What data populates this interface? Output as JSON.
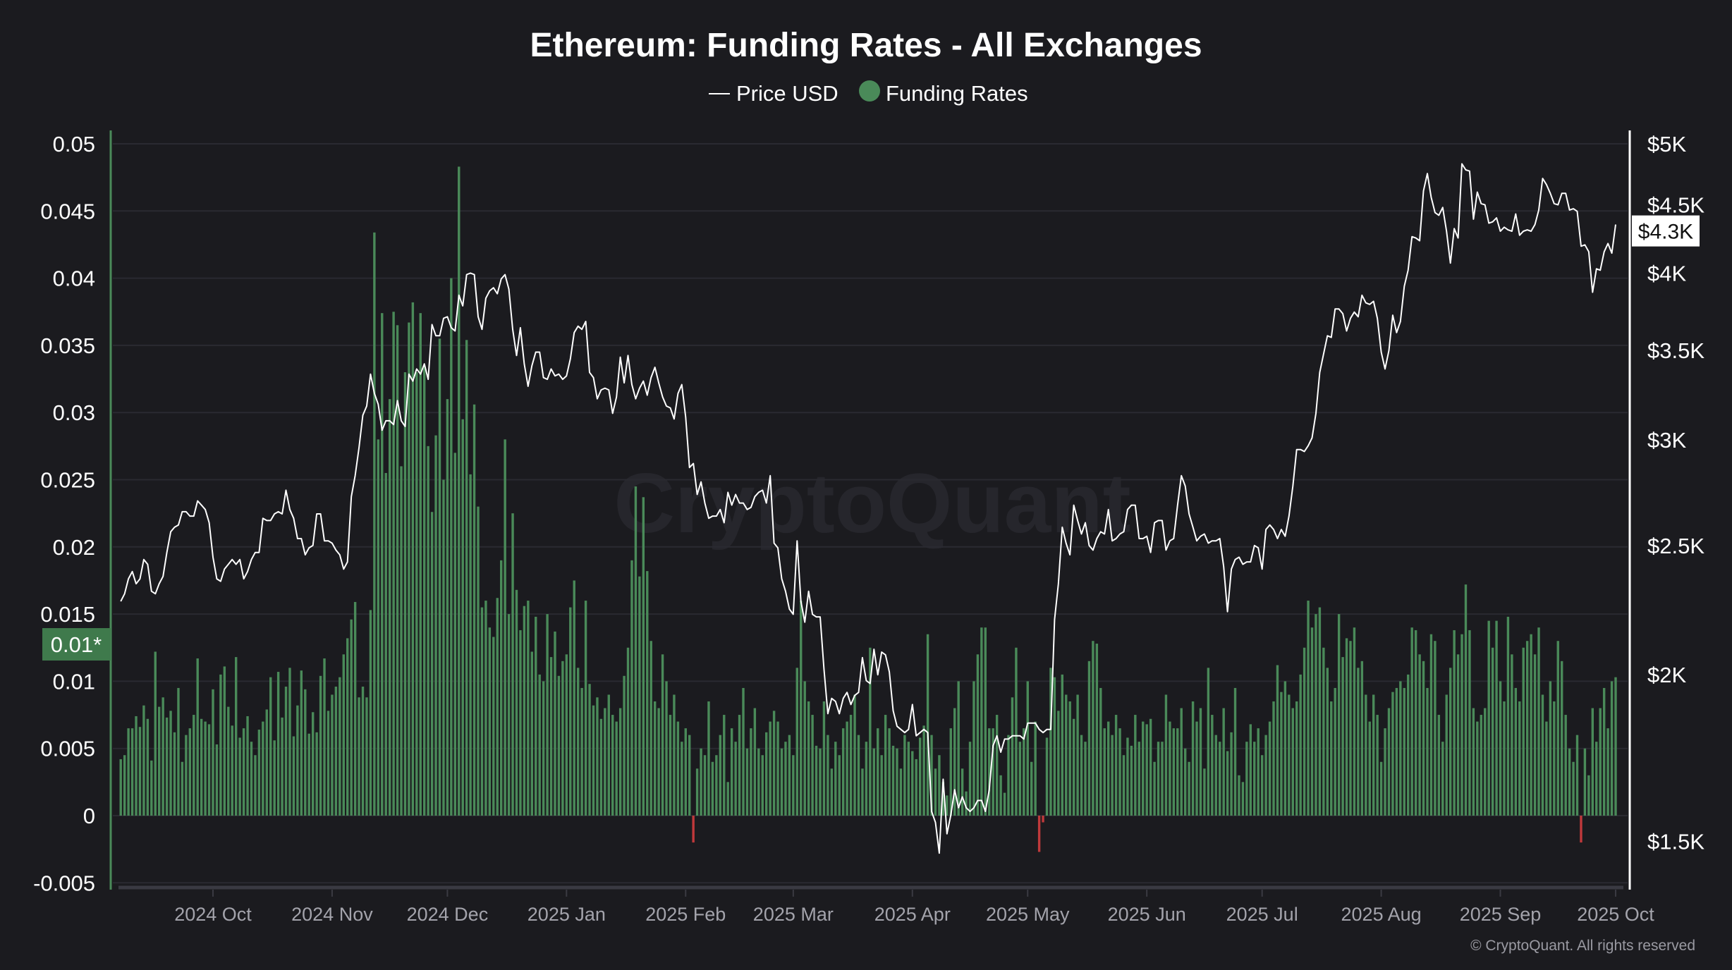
{
  "title": "Ethereum: Funding Rates - All Exchanges",
  "legend": [
    {
      "label": "Price USD",
      "marker": "line",
      "color": "#ffffff"
    },
    {
      "label": "Funding Rates",
      "marker": "circle",
      "color": "#4a8a59"
    }
  ],
  "watermark": "CryptoQuant",
  "footer": "© CryptoQuant. All rights reserved",
  "colors": {
    "background": "#1b1b1f",
    "positive_bar": "#4a8a59",
    "negative_bar": "#c0393b",
    "price_line": "#ffffff",
    "grid": "#2a2a31"
  },
  "chart_data": {
    "type": "bar+line",
    "title": "Ethereum: Funding Rates - All Exchanges",
    "grid": true,
    "legend_position": "top-center",
    "left_axis": {
      "series": "Funding Rates",
      "range": [
        -0.005,
        0.05
      ],
      "ticks": [
        {
          "label": "0.05",
          "value": 0.05
        },
        {
          "label": "0.045",
          "value": 0.045
        },
        {
          "label": "0.04",
          "value": 0.04
        },
        {
          "label": "0.035",
          "value": 0.035
        },
        {
          "label": "0.03",
          "value": 0.03
        },
        {
          "label": "0.025",
          "value": 0.025
        },
        {
          "label": "0.02",
          "value": 0.02
        },
        {
          "label": "0.015",
          "value": 0.015
        },
        {
          "label": "0.01",
          "value": 0.01
        },
        {
          "label": "0.005",
          "value": 0.005
        },
        {
          "label": "0",
          "value": 0
        },
        {
          "label": "-0.005",
          "value": -0.005
        }
      ],
      "current_label": "0.01*",
      "current_value": 0.0103
    },
    "right_axis": {
      "series": "Price USD",
      "scale": "log",
      "ticks": [
        {
          "label": "$5K",
          "value": 5000
        },
        {
          "label": "$4.5K",
          "value": 4500
        },
        {
          "label": "$4K",
          "value": 4000
        },
        {
          "label": "$3.5K",
          "value": 3500
        },
        {
          "label": "$3K",
          "value": 3000
        },
        {
          "label": "$2.5K",
          "value": 2500
        },
        {
          "label": "$2K",
          "value": 2000
        },
        {
          "label": "$1.5K",
          "value": 1500
        }
      ],
      "current_label": "$4.3K",
      "current_value": 4350
    },
    "x_axis": {
      "ticks": [
        {
          "label": "2024 Oct",
          "date": "2024-10-01"
        },
        {
          "label": "2024 Nov",
          "date": "2024-11-01"
        },
        {
          "label": "2024 Dec",
          "date": "2024-12-01"
        },
        {
          "label": "2025 Jan",
          "date": "2025-01-01"
        },
        {
          "label": "2025 Feb",
          "date": "2025-02-01"
        },
        {
          "label": "2025 Mar",
          "date": "2025-03-01"
        },
        {
          "label": "2025 Apr",
          "date": "2025-04-01"
        },
        {
          "label": "2025 May",
          "date": "2025-05-01"
        },
        {
          "label": "2025 Jun",
          "date": "2025-06-01"
        },
        {
          "label": "2025 Jul",
          "date": "2025-07-01"
        },
        {
          "label": "2025 Aug",
          "date": "2025-08-01"
        },
        {
          "label": "2025 Sep",
          "date": "2025-09-01"
        },
        {
          "label": "2025 Oct",
          "date": "2025-10-01"
        }
      ]
    },
    "series": [
      {
        "name": "Funding Rates",
        "kind": "bar",
        "daily_by_month": {
          "2024-09": [
            null,
            null,
            null,
            null,
            null,
            null,
            0.0042,
            0.0045,
            0.0065,
            0.0065,
            0.0074,
            0.0066,
            0.0082,
            0.0072,
            0.0041,
            0.0122,
            0.0081,
            0.0088,
            0.0073,
            0.0078,
            0.0062,
            0.0095,
            0.004,
            0.006,
            0.0065,
            0.0075,
            0.0117,
            0.0072,
            0.007,
            0.0068
          ],
          "2024-10": [
            0.0094,
            0.0053,
            0.0105,
            0.0111,
            0.0081,
            0.0067,
            0.0118,
            0.0058,
            0.0065,
            0.0074,
            0.0055,
            0.0045,
            0.0064,
            0.007,
            0.0079,
            0.0103,
            0.0056,
            0.0107,
            0.0073,
            0.0096,
            0.011,
            0.0059,
            0.0082,
            0.0108,
            0.0094,
            0.0061,
            0.0077,
            0.0062,
            0.0104,
            0.0117,
            0.0078
          ],
          "2024-11": [
            0.009,
            0.0096,
            0.0103,
            0.012,
            0.0132,
            0.0146,
            0.0159,
            0.0088,
            0.0096,
            0.0088,
            0.0153,
            0.0434,
            0.028,
            0.0374,
            0.0255,
            0.031,
            0.0375,
            0.0365,
            0.026,
            0.033,
            0.0367,
            0.0382,
            0.033,
            0.0374,
            0.0335,
            0.0275,
            0.0226,
            0.0283,
            0.0355,
            0.025
          ],
          "2024-12": [
            0.031,
            0.04,
            0.027,
            0.0483,
            0.0295,
            0.0354,
            0.0254,
            0.0306,
            0.023,
            0.0155,
            0.016,
            0.014,
            0.0133,
            0.0162,
            0.019,
            0.028,
            0.015,
            0.0225,
            0.0168,
            0.0138,
            0.0156,
            0.016,
            0.0122,
            0.0148,
            0.0105,
            0.01,
            0.015,
            0.0118,
            0.0137,
            0.0104,
            0.0115
          ],
          "2025-01": [
            0.012,
            0.0155,
            0.0175,
            0.011,
            0.0095,
            0.016,
            0.0098,
            0.0082,
            0.0088,
            0.0072,
            0.008,
            0.009,
            0.0075,
            0.007,
            0.008,
            0.0104,
            0.0125,
            0.019,
            0.0245,
            0.0178,
            0.0237,
            0.0182,
            0.013,
            0.0085,
            0.008,
            0.012,
            0.01,
            0.0075,
            0.009,
            0.007,
            0.0055
          ],
          "2025-02": [
            0.0065,
            0.006,
            -0.002,
            0.0035,
            0.005,
            0.0045,
            0.0085,
            0.004,
            0.0045,
            0.006,
            0.0075,
            0.0025,
            0.0065,
            0.0055,
            0.0075,
            0.0095,
            0.005,
            0.0065,
            0.008,
            0.005,
            0.0045,
            0.0062,
            0.007,
            0.0078,
            0.007,
            0.005,
            0.0055,
            0.006
          ],
          "2025-03": [
            0.0045,
            0.011,
            0.016,
            0.01,
            0.0085,
            0.0075,
            0.0052,
            0.005,
            0.0085,
            0.006,
            0.0035,
            0.0055,
            0.0045,
            0.0065,
            0.007,
            0.0075,
            0.009,
            0.006,
            0.0035,
            0.0055,
            0.0125,
            0.005,
            0.0065,
            0.0045,
            0.0075,
            0.0065,
            0.0052,
            0.005,
            0.0035,
            0.006,
            0.0055
          ],
          "2025-04": [
            0.0048,
            0.0042,
            0.0058,
            0.0067,
            0.0135,
            0.006,
            0.0035,
            0.0045,
            0.0025,
            0.0015,
            0.0065,
            0.008,
            0.01,
            0.0035,
            0.0018,
            0.0055,
            0.01,
            0.012,
            0.014,
            0.014,
            0.0065,
            0.0065,
            0.0075,
            0.003,
            0.0017,
            0.006,
            0.0088,
            0.0125,
            0.0055,
            0.0065
          ],
          "2025-05": [
            0.01,
            0.004,
            0.007,
            -0.0027,
            -0.0005,
            0.0058,
            0.011,
            0.0103,
            0.0078,
            0.0105,
            0.009,
            0.0085,
            0.0072,
            0.009,
            0.006,
            0.0055,
            0.0115,
            0.013,
            0.0128,
            0.0095,
            0.0065,
            0.007,
            0.006,
            0.0075,
            0.0065,
            0.0045,
            0.0058,
            0.0052,
            0.0075,
            0.0055,
            0.007
          ],
          "2025-06": [
            0.0068,
            0.0072,
            0.004,
            0.0055,
            0.0055,
            0.009,
            0.007,
            0.0065,
            0.0065,
            0.008,
            0.005,
            0.004,
            0.0085,
            0.007,
            0.008,
            0.0035,
            0.011,
            0.0075,
            0.006,
            0.0055,
            0.008,
            0.0048,
            0.0062,
            0.0095,
            0.003,
            0.0025,
            0.0055,
            0.0068,
            0.0055,
            0.0065
          ],
          "2025-07": [
            0.0045,
            0.006,
            0.007,
            0.0085,
            0.0112,
            0.0092,
            0.01,
            0.009,
            0.008,
            0.0085,
            0.0105,
            0.0125,
            0.016,
            0.014,
            0.015,
            0.0155,
            0.0125,
            0.011,
            0.0085,
            0.0095,
            0.015,
            0.0118,
            0.0132,
            0.013,
            0.014,
            0.011,
            0.0115,
            0.009,
            0.007,
            0.009,
            0.0075
          ],
          "2025-08": [
            0.004,
            0.0065,
            0.008,
            0.0092,
            0.0095,
            0.01,
            0.0095,
            0.0105,
            0.014,
            0.0138,
            0.012,
            0.0115,
            0.0095,
            0.0135,
            0.013,
            0.0075,
            0.0055,
            0.009,
            0.011,
            0.0138,
            0.012,
            0.0135,
            0.0172,
            0.0138,
            0.008,
            0.007,
            0.0075,
            0.008,
            0.0145,
            0.0125,
            0.0145
          ],
          "2025-09": [
            0.01,
            0.0085,
            0.0148,
            0.012,
            0.0095,
            0.0085,
            0.0125,
            0.013,
            0.0135,
            0.012,
            0.014,
            0.009,
            0.007,
            0.01,
            0.0085,
            0.013,
            0.0115,
            0.0075,
            0.005,
            0.004,
            0.006,
            -0.002,
            0.005,
            0.003,
            0.008,
            0.0055,
            0.008,
            0.0095,
            0.0065,
            0.01
          ],
          "2025-10": [
            0.0103
          ]
        }
      },
      {
        "name": "Price USD",
        "kind": "line",
        "daily_by_month": {
          "2024-09": [
            null,
            null,
            null,
            null,
            null,
            null,
            2270,
            2300,
            2360,
            2390,
            2340,
            2360,
            2440,
            2420,
            2310,
            2300,
            2340,
            2370,
            2470,
            2560,
            2580,
            2590,
            2650,
            2650,
            2630,
            2630,
            2700,
            2680,
            2660,
            2600
          ],
          "2024-10": [
            2450,
            2360,
            2350,
            2400,
            2420,
            2440,
            2420,
            2440,
            2360,
            2390,
            2440,
            2470,
            2470,
            2620,
            2610,
            2610,
            2640,
            2650,
            2640,
            2750,
            2660,
            2620,
            2530,
            2530,
            2460,
            2490,
            2500,
            2640,
            2640,
            2520,
            2520
          ],
          "2024-11": [
            2510,
            2480,
            2460,
            2400,
            2430,
            2720,
            2820,
            2960,
            3130,
            3180,
            3360,
            3250,
            3190,
            3050,
            3100,
            3100,
            3080,
            3210,
            3100,
            3070,
            3360,
            3320,
            3390,
            3360,
            3420,
            3330,
            3660,
            3590,
            3590,
            3700
          ],
          "2024-12": [
            3710,
            3640,
            3620,
            3850,
            3780,
            3990,
            4000,
            3990,
            3710,
            3630,
            3830,
            3880,
            3900,
            3860,
            3960,
            3990,
            3890,
            3630,
            3470,
            3640,
            3420,
            3290,
            3410,
            3490,
            3490,
            3340,
            3330,
            3390,
            3350,
            3360,
            3330
          ],
          "2025-01": [
            3350,
            3450,
            3610,
            3650,
            3630,
            3680,
            3370,
            3340,
            3220,
            3270,
            3280,
            3270,
            3140,
            3230,
            3460,
            3310,
            3470,
            3300,
            3220,
            3280,
            3320,
            3240,
            3340,
            3400,
            3310,
            3230,
            3180,
            3170,
            3110,
            3250,
            3300
          ],
          "2025-02": [
            3120,
            2860,
            2880,
            2730,
            2790,
            2690,
            2620,
            2630,
            2630,
            2660,
            2600,
            2740,
            2680,
            2730,
            2690,
            2690,
            2660,
            2670,
            2720,
            2740,
            2750,
            2690,
            2820,
            2510,
            2490,
            2360,
            2310,
            2240
          ],
          "2025-03": [
            2220,
            2520,
            2270,
            2190,
            2310,
            2220,
            2210,
            2210,
            2020,
            1870,
            1920,
            1910,
            1870,
            1920,
            1940,
            1900,
            1930,
            1940,
            2060,
            1980,
            1970,
            2090,
            2000,
            2080,
            2070,
            2010,
            1880,
            1830,
            1820,
            1810,
            1820
          ],
          "2025-04": [
            1900,
            1800,
            1810,
            1820,
            1810,
            1580,
            1550,
            1470,
            1670,
            1520,
            1570,
            1640,
            1590,
            1620,
            1590,
            1580,
            1590,
            1610,
            1610,
            1580,
            1640,
            1770,
            1800,
            1750,
            1790,
            1790,
            1800,
            1800,
            1800,
            1790
          ],
          "2025-05": [
            1840,
            1840,
            1840,
            1820,
            1810,
            1820,
            1820,
            2200,
            2340,
            2580,
            2510,
            2460,
            2680,
            2610,
            2550,
            2600,
            2500,
            2480,
            2530,
            2560,
            2550,
            2660,
            2520,
            2530,
            2550,
            2560,
            2660,
            2680,
            2680,
            2530,
            2530
          ],
          "2025-06": [
            2540,
            2470,
            2600,
            2610,
            2610,
            2480,
            2520,
            2530,
            2680,
            2820,
            2770,
            2640,
            2580,
            2520,
            2540,
            2550,
            2510,
            2520,
            2520,
            2530,
            2410,
            2230,
            2400,
            2440,
            2450,
            2420,
            2430,
            2430,
            2500,
            2490
          ],
          "2025-07": [
            2400,
            2570,
            2590,
            2570,
            2530,
            2570,
            2540,
            2630,
            2770,
            2950,
            2950,
            2940,
            2970,
            3010,
            3140,
            3370,
            3480,
            3590,
            3580,
            3760,
            3760,
            3730,
            3620,
            3700,
            3740,
            3710,
            3850,
            3800,
            3790,
            3810,
            3700
          ],
          "2025-08": [
            3490,
            3390,
            3500,
            3720,
            3610,
            3680,
            3910,
            4020,
            4260,
            4250,
            4230,
            4610,
            4750,
            4560,
            4440,
            4420,
            4480,
            4300,
            4070,
            4320,
            4250,
            4830,
            4780,
            4770,
            4390,
            4600,
            4510,
            4500,
            4360,
            4370,
            4400
          ],
          "2025-09": [
            4300,
            4330,
            4310,
            4300,
            4430,
            4270,
            4300,
            4310,
            4300,
            4350,
            4460,
            4710,
            4660,
            4590,
            4510,
            4500,
            4590,
            4590,
            4460,
            4470,
            4450,
            4190,
            4200,
            4150,
            3870,
            4030,
            4020,
            4150,
            4210,
            4140
          ],
          "2025-10": [
            4350
          ]
        }
      }
    ]
  }
}
